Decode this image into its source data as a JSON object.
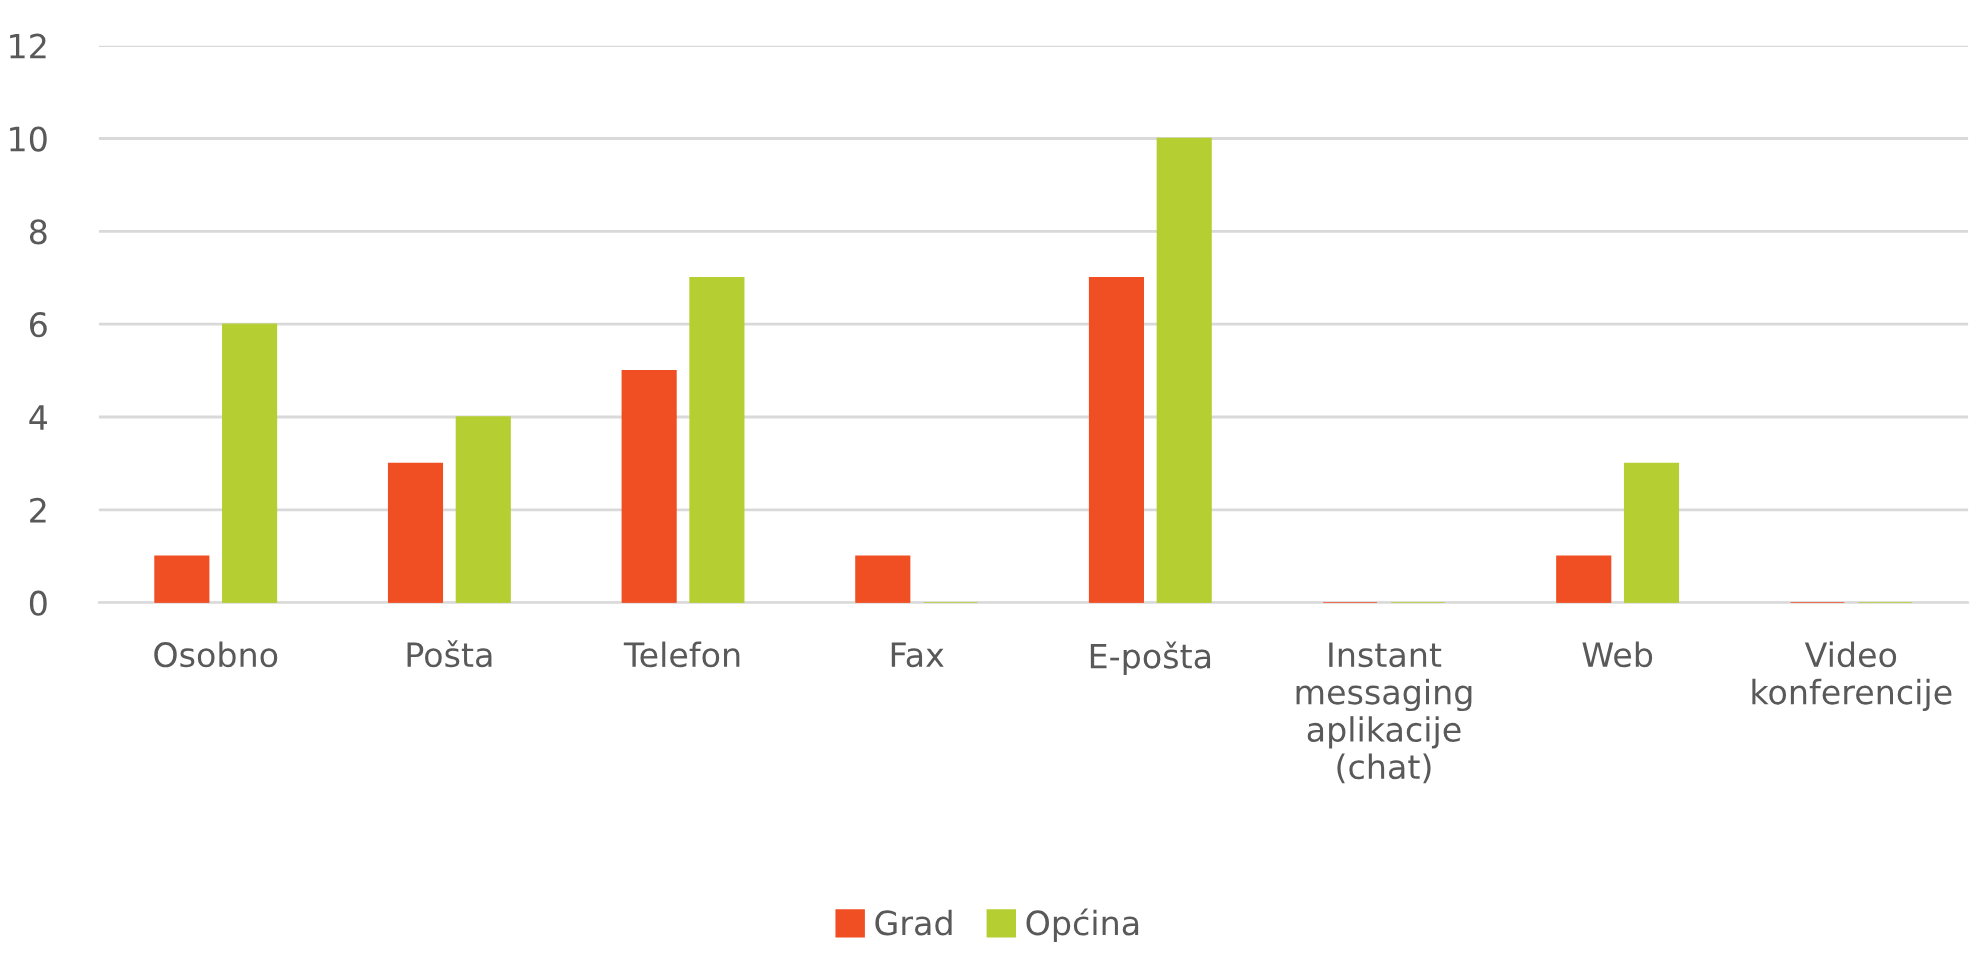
{
  "chart_data": {
    "type": "bar",
    "categories": [
      "Osobno",
      "Pošta",
      "Telefon",
      "Fax",
      "E-pošta",
      "Instant messaging aplikacije (chat)",
      "Web",
      "Video konferencije"
    ],
    "series": [
      {
        "name": "Grad",
        "color": "#f04e23",
        "values": [
          1,
          3,
          5,
          1,
          7,
          0,
          1,
          0
        ]
      },
      {
        "name": "Općina",
        "color": "#b5cf32",
        "values": [
          6,
          4,
          7,
          0,
          10,
          0,
          3,
          0
        ]
      }
    ],
    "ylim": [
      0,
      12
    ],
    "yticks": [
      0,
      2,
      4,
      6,
      8,
      10,
      12
    ],
    "grid": "y",
    "legend": "bottom"
  }
}
